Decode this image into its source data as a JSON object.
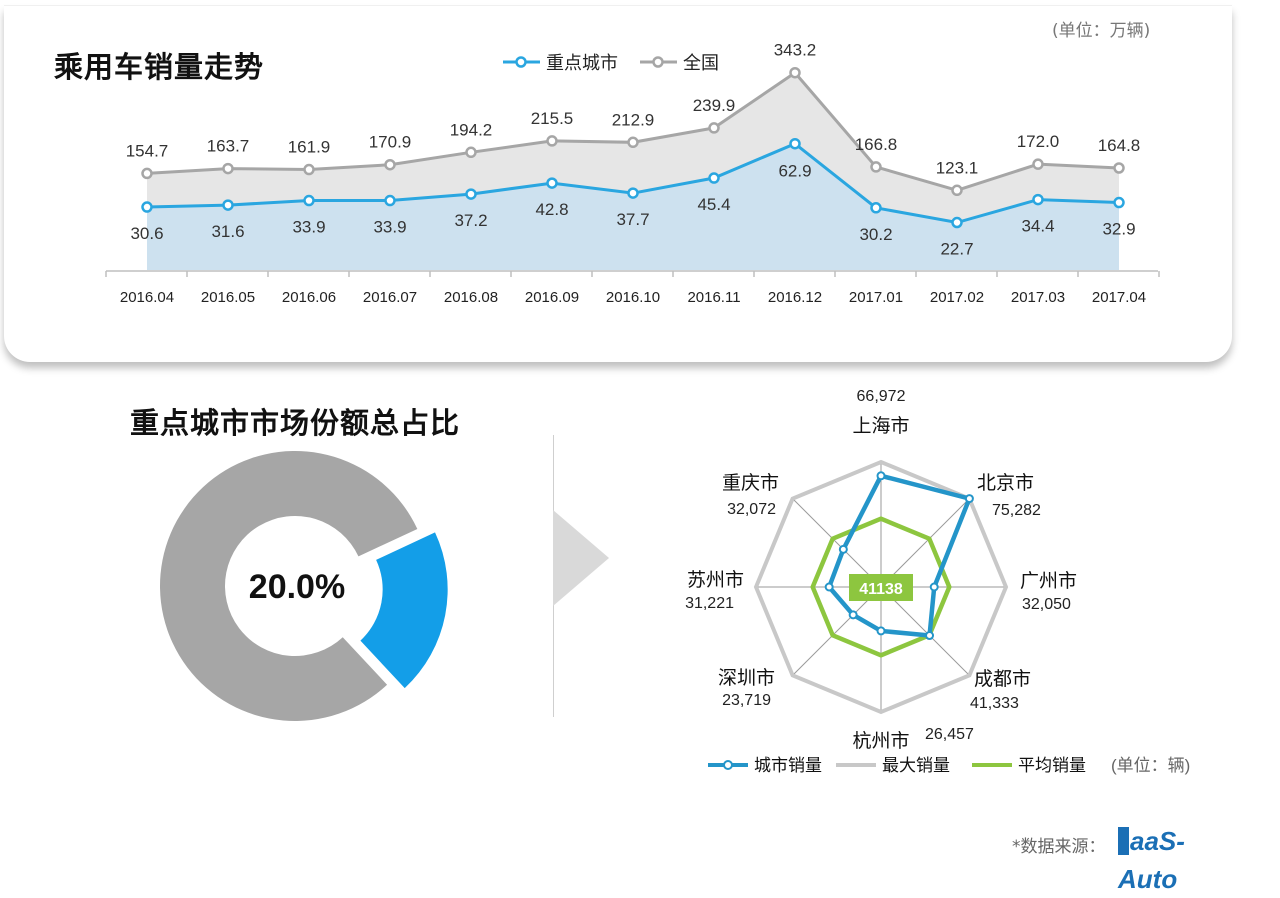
{
  "top": {
    "title": "乘用车销量走势",
    "unit": "(单位：万辆)"
  },
  "bottom": {
    "title": "重点城市市场份额总占比",
    "radar_unit": "(单位：辆)"
  },
  "source": {
    "label": "*数据来源：",
    "logo_text": "aaS-Auto"
  },
  "colors": {
    "key_city_line": "#2aa6e0",
    "national_line": "#a6a6a6",
    "national_fill": "#e6e6e6",
    "key_city_fill": "#cde1ef",
    "donut_gray": "#a6a6a6",
    "donut_blue": "#139ee8",
    "radar_city": "#2495c9",
    "radar_max": "#c8c8c8",
    "radar_avg": "#8dc63f"
  },
  "chart_data": [
    {
      "type": "line",
      "title": "乘用车销量走势",
      "x": [
        "2016.04",
        "2016.05",
        "2016.06",
        "2016.07",
        "2016.08",
        "2016.09",
        "2016.10",
        "2016.11",
        "2016.12",
        "2017.01",
        "2017.02",
        "2017.03",
        "2017.04"
      ],
      "series": [
        {
          "name": "重点城市",
          "values": [
            30.6,
            31.6,
            33.9,
            33.9,
            37.2,
            42.8,
            37.7,
            45.4,
            62.9,
            30.2,
            22.7,
            34.4,
            32.9
          ]
        },
        {
          "name": "全国",
          "values": [
            154.7,
            163.7,
            161.9,
            170.9,
            194.2,
            215.5,
            212.9,
            239.9,
            343.2,
            166.8,
            123.1,
            172.0,
            164.8
          ]
        }
      ],
      "value_labels": {
        "重点城市": [
          "30.6",
          "31.6",
          "33.9",
          "33.9",
          "37.2",
          "42.8",
          "37.7",
          "45.4",
          "62.9",
          "30.2",
          "22.7",
          "34.4",
          "32.9"
        ],
        "全国": [
          "154.7",
          "163.7",
          "161.9",
          "170.9",
          "194.2",
          "215.5",
          "212.9",
          "239.9",
          "343.2",
          "166.8",
          "123.1",
          "172.0",
          "164.8"
        ]
      },
      "legend_position": "top-center",
      "grid": false
    },
    {
      "type": "pie",
      "title": "重点城市市场份额总占比",
      "slices": [
        {
          "name": "",
          "value": 80.0
        },
        {
          "name": "",
          "value": 20.0
        }
      ],
      "center_label": "20.0%"
    },
    {
      "type": "radar",
      "axes": [
        "上海市",
        "北京市",
        "广州市",
        "成都市",
        "杭州市",
        "深圳市",
        "苏州市",
        "重庆市"
      ],
      "value_labels": [
        "66,972",
        "75,282",
        "32,050",
        "41,333",
        "26,457",
        "23,719",
        "31,221",
        "32,072"
      ],
      "series": [
        {
          "name": "城市销量",
          "values": [
            66972,
            75282,
            32050,
            41333,
            26457,
            23719,
            31221,
            32072
          ]
        },
        {
          "name": "最大销量",
          "values": [
            75282,
            75282,
            75282,
            75282,
            75282,
            75282,
            75282,
            75282
          ]
        },
        {
          "name": "平均销量",
          "values": [
            41138,
            41138,
            41138,
            41138,
            41138,
            41138,
            41138,
            41138
          ]
        }
      ],
      "center_label": "41138",
      "max": 75282
    }
  ]
}
